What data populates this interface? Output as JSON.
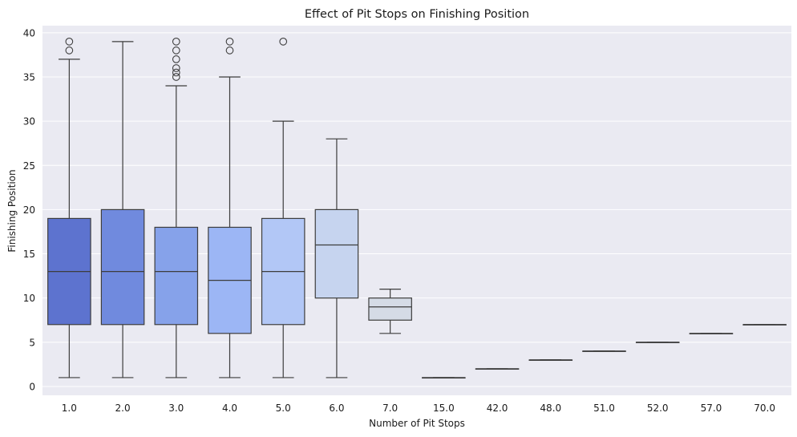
{
  "chart_data": {
    "type": "box",
    "title": "Effect of Pit Stops on Finishing Position",
    "xlabel": "Number of Pit Stops",
    "ylabel": "Finishing Position",
    "ylim": [
      -1,
      40.8
    ],
    "yticks": [
      0,
      5,
      10,
      15,
      20,
      25,
      30,
      35,
      40
    ],
    "grid": true,
    "categories": [
      "1.0",
      "2.0",
      "3.0",
      "4.0",
      "5.0",
      "6.0",
      "7.0",
      "15.0",
      "42.0",
      "48.0",
      "51.0",
      "52.0",
      "57.0",
      "70.0"
    ],
    "boxes": [
      {
        "category": "1.0",
        "whisker_low": 1,
        "q1": 7,
        "median": 13,
        "q3": 19,
        "whisker_high": 37,
        "outliers": [
          38,
          39
        ],
        "color": "#5d73cf"
      },
      {
        "category": "2.0",
        "whisker_low": 1,
        "q1": 7,
        "median": 13,
        "q3": 20,
        "whisker_high": 39,
        "outliers": [],
        "color": "#708ade"
      },
      {
        "category": "3.0",
        "whisker_low": 1,
        "q1": 7,
        "median": 13,
        "q3": 18,
        "whisker_high": 34,
        "outliers": [
          35,
          35.5,
          36,
          37,
          38,
          39
        ],
        "color": "#86a2ea"
      },
      {
        "category": "4.0",
        "whisker_low": 1,
        "q1": 6,
        "median": 12,
        "q3": 18,
        "whisker_high": 35,
        "outliers": [
          38,
          39
        ],
        "color": "#9cb6f5"
      },
      {
        "category": "5.0",
        "whisker_low": 1,
        "q1": 7,
        "median": 13,
        "q3": 19,
        "whisker_high": 30,
        "outliers": [
          39
        ],
        "color": "#b2c7f6"
      },
      {
        "category": "6.0",
        "whisker_low": 1,
        "q1": 10,
        "median": 16,
        "q3": 20,
        "whisker_high": 28,
        "outliers": [],
        "color": "#c6d4ef"
      },
      {
        "category": "7.0",
        "whisker_low": 6,
        "q1": 7.5,
        "median": 9,
        "q3": 10,
        "whisker_high": 11,
        "outliers": [],
        "color": "#d5dbe6"
      },
      {
        "category": "15.0",
        "whisker_low": 1,
        "q1": 1,
        "median": 1,
        "q3": 1,
        "whisker_high": 1,
        "outliers": [],
        "color": "#d5dbe6"
      },
      {
        "category": "42.0",
        "whisker_low": 2,
        "q1": 2,
        "median": 2,
        "q3": 2,
        "whisker_high": 2,
        "outliers": [],
        "color": "#d5dbe6"
      },
      {
        "category": "48.0",
        "whisker_low": 3,
        "q1": 3,
        "median": 3,
        "q3": 3,
        "whisker_high": 3,
        "outliers": [],
        "color": "#d5dbe6"
      },
      {
        "category": "51.0",
        "whisker_low": 4,
        "q1": 4,
        "median": 4,
        "q3": 4,
        "whisker_high": 4,
        "outliers": [],
        "color": "#d5dbe6"
      },
      {
        "category": "52.0",
        "whisker_low": 5,
        "q1": 5,
        "median": 5,
        "q3": 5,
        "whisker_high": 5,
        "outliers": [],
        "color": "#d5dbe6"
      },
      {
        "category": "57.0",
        "whisker_low": 6,
        "q1": 6,
        "median": 6,
        "q3": 6,
        "whisker_high": 6,
        "outliers": [],
        "color": "#d5dbe6"
      },
      {
        "category": "70.0",
        "whisker_low": 7,
        "q1": 7,
        "median": 7,
        "q3": 7,
        "whisker_high": 7,
        "outliers": [],
        "color": "#d5dbe6"
      }
    ],
    "colors": {
      "plot_background": "#eaeaf2",
      "grid": "#ffffff",
      "line": "#3d3d3d"
    }
  }
}
